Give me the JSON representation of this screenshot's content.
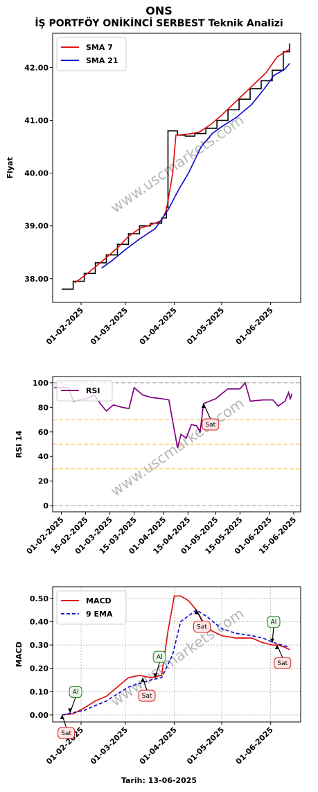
{
  "header": {
    "title": "ONS",
    "subtitle": "İŞ PORTFÖY ONİKİNCİ SERBEST Teknik Analizi"
  },
  "watermark": "www.uscmarkets.com",
  "footer": {
    "date_label": "Tarih: 13-06-2025"
  },
  "colors": {
    "sma7": "#dd1111",
    "sma21": "#1111cc",
    "rsi": "#800080",
    "macd": "#dd1111",
    "ema": "#1111cc",
    "price": "#000000"
  },
  "chart_data": [
    {
      "type": "line",
      "name": "price",
      "ylabel": "Fiyat",
      "ylim": [
        37.55,
        42.65
      ],
      "yticks": [
        38.0,
        39.0,
        40.0,
        41.0,
        42.0
      ],
      "ytick_labels": [
        "38.00",
        "39.00",
        "40.00",
        "41.00",
        "42.00"
      ],
      "xticks": [
        "01-02-2025",
        "01-03-2025",
        "01-04-2025",
        "01-05-2025",
        "01-06-2025"
      ],
      "xrange": [
        "2025-01-14",
        "2025-06-20"
      ],
      "legend": {
        "placement": "top-left",
        "entries": [
          "SMA 7",
          "SMA 21"
        ]
      },
      "price": [
        {
          "x": "2025-01-20",
          "y": 37.8
        },
        {
          "x": "2025-01-27",
          "y": 37.95
        },
        {
          "x": "2025-02-03",
          "y": 38.1
        },
        {
          "x": "2025-02-10",
          "y": 38.3
        },
        {
          "x": "2025-02-17",
          "y": 38.45
        },
        {
          "x": "2025-02-24",
          "y": 38.65
        },
        {
          "x": "2025-03-03",
          "y": 38.85
        },
        {
          "x": "2025-03-10",
          "y": 39.0
        },
        {
          "x": "2025-03-17",
          "y": 39.05
        },
        {
          "x": "2025-03-24",
          "y": 39.15
        },
        {
          "x": "2025-03-27",
          "y": 39.35
        },
        {
          "x": "2025-03-28",
          "y": 40.8
        },
        {
          "x": "2025-04-03",
          "y": 40.72
        },
        {
          "x": "2025-04-08",
          "y": 40.7
        },
        {
          "x": "2025-04-14",
          "y": 40.75
        },
        {
          "x": "2025-04-21",
          "y": 40.85
        },
        {
          "x": "2025-04-28",
          "y": 41.0
        },
        {
          "x": "2025-05-05",
          "y": 41.2
        },
        {
          "x": "2025-05-12",
          "y": 41.4
        },
        {
          "x": "2025-05-19",
          "y": 41.6
        },
        {
          "x": "2025-05-26",
          "y": 41.75
        },
        {
          "x": "2025-06-02",
          "y": 41.95
        },
        {
          "x": "2025-06-09",
          "y": 42.3
        },
        {
          "x": "2025-06-13",
          "y": 42.45
        }
      ],
      "series": [
        {
          "name": "SMA 7",
          "points": [
            {
              "x": "2025-01-28",
              "y": 37.92
            },
            {
              "x": "2025-02-03",
              "y": 38.05
            },
            {
              "x": "2025-02-10",
              "y": 38.22
            },
            {
              "x": "2025-02-17",
              "y": 38.4
            },
            {
              "x": "2025-02-24",
              "y": 38.58
            },
            {
              "x": "2025-03-03",
              "y": 38.8
            },
            {
              "x": "2025-03-10",
              "y": 38.95
            },
            {
              "x": "2025-03-17",
              "y": 39.02
            },
            {
              "x": "2025-03-24",
              "y": 39.1
            },
            {
              "x": "2025-03-27",
              "y": 39.3
            },
            {
              "x": "2025-03-31",
              "y": 40.0
            },
            {
              "x": "2025-04-02",
              "y": 40.72
            },
            {
              "x": "2025-04-10",
              "y": 40.74
            },
            {
              "x": "2025-04-17",
              "y": 40.78
            },
            {
              "x": "2025-04-24",
              "y": 40.92
            },
            {
              "x": "2025-05-01",
              "y": 41.1
            },
            {
              "x": "2025-05-08",
              "y": 41.3
            },
            {
              "x": "2025-05-15",
              "y": 41.5
            },
            {
              "x": "2025-05-22",
              "y": 41.7
            },
            {
              "x": "2025-05-29",
              "y": 41.9
            },
            {
              "x": "2025-06-05",
              "y": 42.2
            },
            {
              "x": "2025-06-13",
              "y": 42.35
            }
          ]
        },
        {
          "name": "SMA 21",
          "points": [
            {
              "x": "2025-02-14",
              "y": 38.2
            },
            {
              "x": "2025-02-21",
              "y": 38.35
            },
            {
              "x": "2025-03-01",
              "y": 38.55
            },
            {
              "x": "2025-03-10",
              "y": 38.75
            },
            {
              "x": "2025-03-20",
              "y": 38.95
            },
            {
              "x": "2025-03-28",
              "y": 39.3
            },
            {
              "x": "2025-04-04",
              "y": 39.7
            },
            {
              "x": "2025-04-10",
              "y": 40.0
            },
            {
              "x": "2025-04-18",
              "y": 40.5
            },
            {
              "x": "2025-04-25",
              "y": 40.75
            },
            {
              "x": "2025-05-02",
              "y": 40.9
            },
            {
              "x": "2025-05-10",
              "y": 41.05
            },
            {
              "x": "2025-05-20",
              "y": 41.3
            },
            {
              "x": "2025-05-28",
              "y": 41.6
            },
            {
              "x": "2025-06-03",
              "y": 41.85
            },
            {
              "x": "2025-06-10",
              "y": 41.97
            },
            {
              "x": "2025-06-13",
              "y": 42.08
            }
          ]
        }
      ]
    },
    {
      "type": "line",
      "name": "rsi",
      "ylabel": "RSI 14",
      "ylim": [
        -5,
        105
      ],
      "yticks": [
        0,
        20,
        40,
        60,
        80,
        100
      ],
      "ytick_labels": [
        "0",
        "20",
        "40",
        "60",
        "80",
        "100"
      ],
      "hlines": [
        {
          "y": 100,
          "color": "#bbbbbb"
        },
        {
          "y": 70,
          "color": "#f5d36b"
        },
        {
          "y": 50,
          "color": "#f5d36b"
        },
        {
          "y": 30,
          "color": "#f5d36b"
        },
        {
          "y": 0,
          "color": "#bbbbbb"
        }
      ],
      "xticks": [
        "01-02-2025",
        "15-02-2025",
        "01-03-2025",
        "15-03-2025",
        "01-04-2025",
        "15-04-2025",
        "01-05-2025",
        "15-05-2025",
        "01-06-2025",
        "15-06-2025"
      ],
      "xrange": [
        "2025-01-27",
        "2025-06-19"
      ],
      "legend": {
        "placement": "top-left",
        "entries": [
          "RSI"
        ]
      },
      "series": [
        {
          "name": "RSI",
          "points": [
            {
              "x": "2025-01-28",
              "y": 96
            },
            {
              "x": "2025-02-05",
              "y": 96
            },
            {
              "x": "2025-02-08",
              "y": 85
            },
            {
              "x": "2025-02-15",
              "y": 87
            },
            {
              "x": "2025-02-20",
              "y": 90
            },
            {
              "x": "2025-02-24",
              "y": 82
            },
            {
              "x": "2025-02-27",
              "y": 77
            },
            {
              "x": "2025-03-03",
              "y": 82
            },
            {
              "x": "2025-03-08",
              "y": 80
            },
            {
              "x": "2025-03-12",
              "y": 79
            },
            {
              "x": "2025-03-15",
              "y": 96
            },
            {
              "x": "2025-03-20",
              "y": 90
            },
            {
              "x": "2025-03-25",
              "y": 88
            },
            {
              "x": "2025-03-31",
              "y": 87
            },
            {
              "x": "2025-04-04",
              "y": 86
            },
            {
              "x": "2025-04-09",
              "y": 47
            },
            {
              "x": "2025-04-11",
              "y": 58
            },
            {
              "x": "2025-04-14",
              "y": 55
            },
            {
              "x": "2025-04-17",
              "y": 66
            },
            {
              "x": "2025-04-20",
              "y": 65
            },
            {
              "x": "2025-04-22",
              "y": 60
            },
            {
              "x": "2025-04-24",
              "y": 83
            },
            {
              "x": "2025-05-01",
              "y": 87
            },
            {
              "x": "2025-05-08",
              "y": 95
            },
            {
              "x": "2025-05-15",
              "y": 95
            },
            {
              "x": "2025-05-18",
              "y": 100
            },
            {
              "x": "2025-05-21",
              "y": 85
            },
            {
              "x": "2025-05-28",
              "y": 86
            },
            {
              "x": "2025-06-03",
              "y": 86
            },
            {
              "x": "2025-06-06",
              "y": 81
            },
            {
              "x": "2025-06-10",
              "y": 85
            },
            {
              "x": "2025-06-12",
              "y": 92
            },
            {
              "x": "2025-06-13",
              "y": 87
            },
            {
              "x": "2025-06-14",
              "y": 91
            }
          ]
        }
      ],
      "annotations": [
        {
          "label": "Sat",
          "x": "2025-04-24",
          "y": 83
        }
      ]
    },
    {
      "type": "line",
      "name": "macd",
      "ylabel": "MACD",
      "xlabel": "Tarih: 13-06-2025",
      "ylim": [
        -0.03,
        0.55
      ],
      "yticks": [
        0.0,
        0.1,
        0.2,
        0.3,
        0.4,
        0.5
      ],
      "ytick_labels": [
        "0.00",
        "0.10",
        "0.20",
        "0.30",
        "0.40",
        "0.50"
      ],
      "grid": true,
      "xticks": [
        "01-02-2025",
        "01-03-2025",
        "01-04-2025",
        "01-05-2025",
        "01-06-2025"
      ],
      "xrange": [
        "2025-01-14",
        "2025-06-20"
      ],
      "legend": {
        "placement": "top-left",
        "entries": [
          "MACD",
          "9 EMA"
        ]
      },
      "series": [
        {
          "name": "MACD",
          "points": [
            {
              "x": "2025-01-20",
              "y": 0.0
            },
            {
              "x": "2025-01-27",
              "y": 0.005
            },
            {
              "x": "2025-02-03",
              "y": 0.03
            },
            {
              "x": "2025-02-10",
              "y": 0.06
            },
            {
              "x": "2025-02-17",
              "y": 0.08
            },
            {
              "x": "2025-02-24",
              "y": 0.12
            },
            {
              "x": "2025-03-03",
              "y": 0.16
            },
            {
              "x": "2025-03-10",
              "y": 0.17
            },
            {
              "x": "2025-03-17",
              "y": 0.16
            },
            {
              "x": "2025-03-24",
              "y": 0.17
            },
            {
              "x": "2025-03-28",
              "y": 0.36
            },
            {
              "x": "2025-04-01",
              "y": 0.51
            },
            {
              "x": "2025-04-05",
              "y": 0.51
            },
            {
              "x": "2025-04-10",
              "y": 0.49
            },
            {
              "x": "2025-04-15",
              "y": 0.45
            },
            {
              "x": "2025-04-20",
              "y": 0.39
            },
            {
              "x": "2025-04-25",
              "y": 0.36
            },
            {
              "x": "2025-05-01",
              "y": 0.34
            },
            {
              "x": "2025-05-10",
              "y": 0.33
            },
            {
              "x": "2025-05-20",
              "y": 0.33
            },
            {
              "x": "2025-05-27",
              "y": 0.31
            },
            {
              "x": "2025-06-02",
              "y": 0.3
            },
            {
              "x": "2025-06-06",
              "y": 0.3
            },
            {
              "x": "2025-06-10",
              "y": 0.29
            },
            {
              "x": "2025-06-13",
              "y": 0.28
            }
          ]
        },
        {
          "name": "9 EMA",
          "points": [
            {
              "x": "2025-01-20",
              "y": 0.0
            },
            {
              "x": "2025-02-03",
              "y": 0.02
            },
            {
              "x": "2025-02-17",
              "y": 0.06
            },
            {
              "x": "2025-03-03",
              "y": 0.12
            },
            {
              "x": "2025-03-17",
              "y": 0.15
            },
            {
              "x": "2025-03-24",
              "y": 0.16
            },
            {
              "x": "2025-03-31",
              "y": 0.26
            },
            {
              "x": "2025-04-05",
              "y": 0.4
            },
            {
              "x": "2025-04-15",
              "y": 0.45
            },
            {
              "x": "2025-04-22",
              "y": 0.42
            },
            {
              "x": "2025-05-01",
              "y": 0.37
            },
            {
              "x": "2025-05-10",
              "y": 0.35
            },
            {
              "x": "2025-05-20",
              "y": 0.34
            },
            {
              "x": "2025-05-27",
              "y": 0.33
            },
            {
              "x": "2025-06-03",
              "y": 0.31
            },
            {
              "x": "2025-06-13",
              "y": 0.29
            }
          ]
        }
      ],
      "annotations": [
        {
          "label": "Sat",
          "x": "2025-01-20",
          "y": 0.0
        },
        {
          "label": "Al",
          "x": "2025-01-25",
          "y": 0.01
        },
        {
          "label": "Sat",
          "x": "2025-03-12",
          "y": 0.16
        },
        {
          "label": "Al",
          "x": "2025-03-20",
          "y": 0.16
        },
        {
          "label": "Sat",
          "x": "2025-04-15",
          "y": 0.45
        },
        {
          "label": "Al",
          "x": "2025-06-02",
          "y": 0.31
        },
        {
          "label": "Sat",
          "x": "2025-06-05",
          "y": 0.3
        }
      ]
    }
  ]
}
